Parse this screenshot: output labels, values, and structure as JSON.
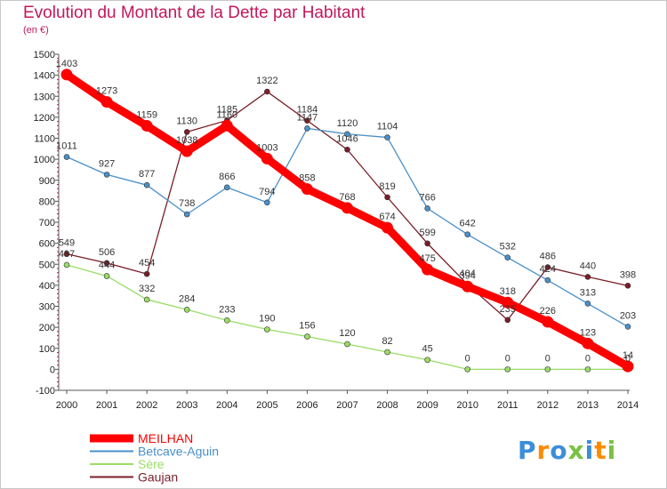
{
  "chart_data": {
    "type": "line",
    "title": "Evolution du Montant de la Dette par Habitant",
    "subtitle": "(en €)",
    "x": [
      "2000",
      "2001",
      "2002",
      "2003",
      "2004",
      "2005",
      "2006",
      "2007",
      "2008",
      "2009",
      "2010",
      "2011",
      "2012",
      "2013",
      "2014"
    ],
    "ylim": [
      -100,
      1500
    ],
    "yticks": [
      -100,
      0,
      100,
      200,
      300,
      400,
      500,
      600,
      700,
      800,
      900,
      1000,
      1100,
      1200,
      1300,
      1400,
      1500
    ],
    "grid": false,
    "legend_position": "bottom-left",
    "series": [
      {
        "name": "MEILHAN",
        "color": "#ff0000",
        "values": [
          1403,
          1273,
          1159,
          1038,
          1160,
          1003,
          858,
          768,
          674,
          475,
          394,
          318,
          226,
          123,
          14
        ],
        "labels": [
          "1403",
          "1273",
          "1159",
          "1038",
          "1160",
          "1003",
          "858",
          "768",
          "674",
          "475",
          "394",
          "318",
          "226",
          "123",
          "14"
        ]
      },
      {
        "name": "Betcave-Aguin",
        "color": "#4a90c8",
        "values": [
          1011,
          927,
          877,
          738,
          866,
          794,
          1147,
          1120,
          1104,
          766,
          642,
          532,
          424,
          313,
          203
        ],
        "labels": [
          "1011",
          "927",
          "877",
          "738",
          "866",
          "794",
          "1147",
          "1120",
          "1104",
          "766",
          "642",
          "532",
          "424",
          "313",
          "203"
        ]
      },
      {
        "name": "Sère",
        "color": "#99dd66",
        "values": [
          497,
          444,
          332,
          284,
          233,
          190,
          156,
          120,
          82,
          45,
          0,
          0,
          0,
          0,
          0
        ],
        "labels": [
          "497",
          "444",
          "332",
          "284",
          "233",
          "190",
          "156",
          "120",
          "82",
          "45",
          "0",
          "0",
          "0",
          "0",
          "0"
        ]
      },
      {
        "name": "Gaujan",
        "color": "#7a1e28",
        "values": [
          549,
          506,
          454,
          1130,
          1185,
          1322,
          1184,
          1046,
          819,
          599,
          404,
          235,
          486,
          440,
          398
        ],
        "labels": [
          "549",
          "506",
          "454",
          "1130",
          "1185",
          "1322",
          "1184",
          "1046",
          "819",
          "599",
          "404",
          "235",
          "486",
          "440",
          "398"
        ]
      }
    ]
  },
  "logo": {
    "text": "Proxiti",
    "letter_colors": [
      "#3d8ed8",
      "#ff8a00",
      "#3d8ed8",
      "#7ac142",
      "#3d8ed8",
      "#ff8a00",
      "#7ac142"
    ]
  }
}
